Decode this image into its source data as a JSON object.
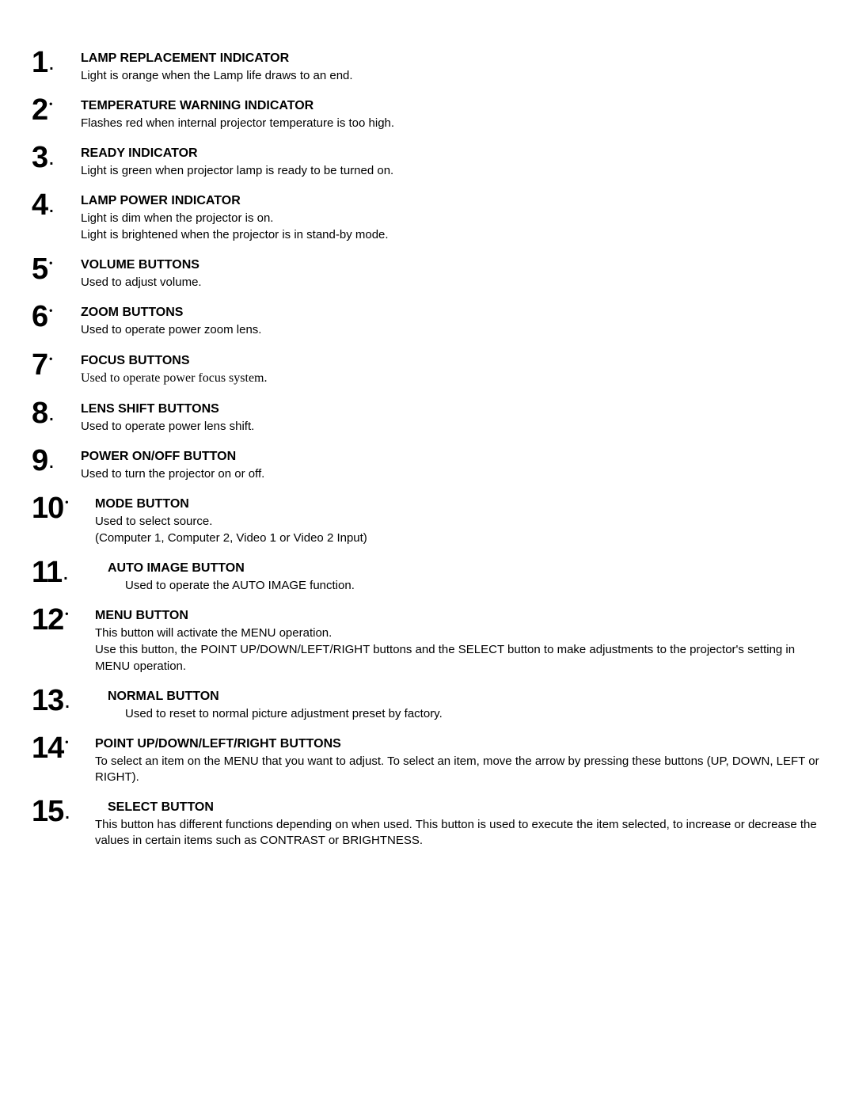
{
  "items": [
    {
      "num": "1",
      "dot_style": "low",
      "title_indent": 0,
      "title": "LAMP REPLACEMENT INDICATOR",
      "desc_style": "sans",
      "desc_indent": 0,
      "desc": [
        "Light is orange when the Lamp life draws to an end."
      ]
    },
    {
      "num": "2",
      "dot_style": "high",
      "title_indent": 0,
      "title": "TEMPERATURE WARNING INDICATOR",
      "desc_style": "sans",
      "desc_indent": 0,
      "desc": [
        "Flashes red when internal projector temperature is too high."
      ]
    },
    {
      "num": "3",
      "dot_style": "low",
      "title_indent": 0,
      "title": "READY INDICATOR",
      "desc_style": "sans",
      "desc_indent": 0,
      "desc": [
        "Light is green when projector lamp is ready to be turned on."
      ]
    },
    {
      "num": "4",
      "dot_style": "low",
      "title_indent": 0,
      "title": "LAMP POWER INDICATOR",
      "desc_style": "sans",
      "desc_indent": 0,
      "desc": [
        "Light is dim when the projector is on.",
        " Light is brightened when the projector is in stand-by mode."
      ]
    },
    {
      "num": "5",
      "dot_style": "high",
      "title_indent": 0,
      "title": "VOLUME BUTTONS",
      "desc_style": "sans",
      "desc_indent": 0,
      "desc": [
        "Used to adjust volume."
      ]
    },
    {
      "num": "6",
      "dot_style": "high",
      "title_indent": 0,
      "title": "ZOOM BUTTONS",
      "desc_style": "sans",
      "desc_indent": 0,
      "desc": [
        "Used to operate power zoom lens."
      ]
    },
    {
      "num": "7",
      "dot_style": "high",
      "title_indent": 0,
      "title": "FOCUS BUTTONS",
      "desc_style": "serif",
      "desc_indent": 0,
      "desc": [
        "Used to operate power focus system."
      ]
    },
    {
      "num": "8",
      "dot_style": "low",
      "title_indent": 0,
      "title": "LENS SHIFT BUTTONS",
      "desc_style": "sans",
      "desc_indent": 0,
      "desc": [
        "Used to operate power lens shift."
      ]
    },
    {
      "num": "9",
      "dot_style": "low",
      "title_indent": 0,
      "title": "POWER ON/OFF BUTTON",
      "desc_style": "sans",
      "desc_indent": 0,
      "desc": [
        "Used to turn the projector on or off."
      ]
    },
    {
      "num": "10",
      "dot_style": "high",
      "title_indent": 0,
      "title": "MODE BUTTON",
      "desc_style": "sans",
      "desc_indent": 0,
      "desc": [
        " Used to select source.",
        "(Computer 1, Computer 2, Video 1 or Video 2 Input)"
      ]
    },
    {
      "num": "11",
      "dot_style": "low",
      "title_indent": 16,
      "title": "AUTO IMAGE BUTTON",
      "desc_style": "sans",
      "desc_indent": 38,
      "desc": [
        "Used to operate the AUTO IMAGE function."
      ]
    },
    {
      "num": "12",
      "dot_style": "high",
      "title_indent": 0,
      "title": "MENU BUTTON",
      "desc_style": "sans",
      "desc_indent": 0,
      "desc": [
        " This button will activate the MENU operation.",
        "Use this button, the POINT UP/DOWN/LEFT/RIGHT buttons and the SELECT button to make adjustments to the projector's setting in MENU operation."
      ]
    },
    {
      "num": "13",
      "dot_style": "low",
      "title_indent": 16,
      "title": "NORMAL BUTTON",
      "desc_style": "sans",
      "desc_indent": 38,
      "desc": [
        "Used to reset to normal picture adjustment preset by factory."
      ]
    },
    {
      "num": "14",
      "dot_style": "high",
      "title_indent": 0,
      "title": "POINT UP/DOWN/LEFT/RIGHT BUTTONS",
      "desc_style": "sans",
      "desc_indent": 0,
      "desc": [
        " To select an item on the MENU that you want to adjust. To select an item, move the arrow by pressing these buttons (UP, DOWN, LEFT or RIGHT)."
      ]
    },
    {
      "num": "15",
      "dot_style": "low",
      "title_indent": 16,
      "title": "SELECT BUTTON",
      "desc_style": "sans",
      "desc_indent": 0,
      "desc": [
        "This button has different functions depending on when used. This button is used to execute the item selected, to increase or decrease the values in certain items such as CONTRAST or BRIGHTNESS."
      ]
    }
  ]
}
